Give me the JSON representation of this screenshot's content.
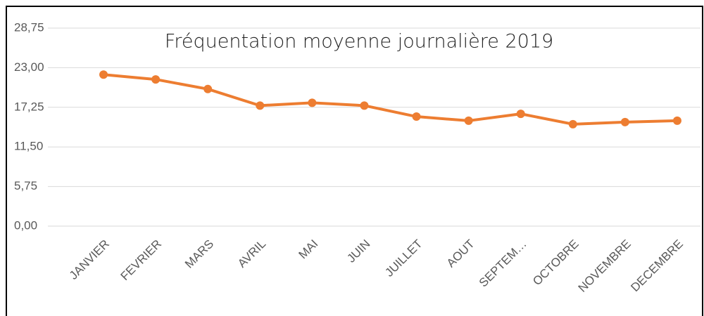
{
  "chart_data": {
    "type": "line",
    "title": "Fréquentation moyenne journalière 2019",
    "categories": [
      "JANVIER",
      "FEVRIER",
      "MARS",
      "AVRIL",
      "MAI",
      "JUIN",
      "JUILLET",
      "AOUT",
      "SEPTEM…",
      "OCTOBRE",
      "NOVEMBRE",
      "DECEMBRE"
    ],
    "values": [
      22.0,
      21.3,
      19.9,
      17.5,
      17.9,
      17.5,
      15.9,
      15.3,
      16.3,
      14.8,
      15.1,
      15.3
    ],
    "color": "#ed7d31",
    "ylim": [
      0,
      28.75
    ],
    "yticks": [
      {
        "value": 0,
        "label": "0,00"
      },
      {
        "value": 5.75,
        "label": "5,75"
      },
      {
        "value": 11.5,
        "label": "11,50"
      },
      {
        "value": 17.25,
        "label": "17,25"
      },
      {
        "value": 23,
        "label": "23,00"
      },
      {
        "value": 28.75,
        "label": "28,75"
      }
    ],
    "grid": true
  }
}
